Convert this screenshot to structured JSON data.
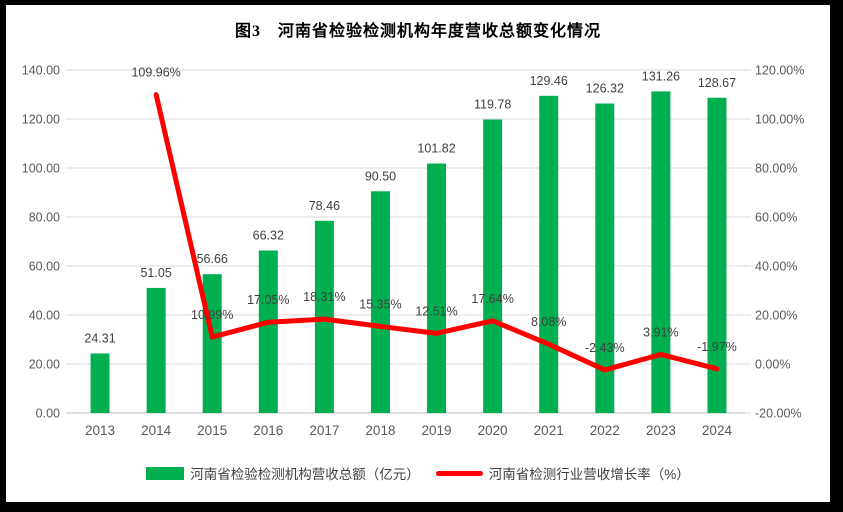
{
  "title": "图3　河南省检验检测机构年度营收总额变化情况",
  "colors": {
    "bar": "#00B050",
    "line": "#FF0000",
    "gridline": "#D9D9D9",
    "axis_line": "#BFBFBF",
    "axis_text": "#595959",
    "data_label": "#404040",
    "title_text": "#000000",
    "background": "#FFFFFF",
    "frame": "#000000"
  },
  "chart_data": {
    "type": "bar+line combo",
    "title": "图3　河南省检验检测机构年度营收总额变化情况",
    "categories": [
      "2013",
      "2014",
      "2015",
      "2016",
      "2017",
      "2018",
      "2019",
      "2020",
      "2021",
      "2022",
      "2023",
      "2024"
    ],
    "series": [
      {
        "name": "河南省检验检测机构营收总额（亿元）",
        "type": "bar",
        "axis": "left",
        "color": "#00B050",
        "values": [
          24.31,
          51.05,
          56.66,
          66.32,
          78.46,
          90.5,
          101.82,
          119.78,
          129.46,
          126.32,
          131.26,
          128.67
        ],
        "labels": [
          "24.31",
          "51.05",
          "56.66",
          "66.32",
          "78.46",
          "90.50",
          "101.82",
          "119.78",
          "129.46",
          "126.32",
          "131.26",
          "128.67"
        ]
      },
      {
        "name": "河南省检测行业营收增长率（%）",
        "type": "line",
        "axis": "right",
        "color": "#FF0000",
        "values": [
          null,
          109.96,
          10.99,
          17.05,
          18.31,
          15.35,
          12.51,
          17.64,
          8.08,
          -2.43,
          3.91,
          -1.97
        ],
        "labels": [
          null,
          "109.96%",
          "10.99%",
          "17.05%",
          "18.31%",
          "15.35%",
          "12.51%",
          "17.64%",
          "8.08%",
          "-2.43%",
          "3.91%",
          "-1.97%"
        ]
      }
    ],
    "left_axis": {
      "min": 0,
      "max": 140,
      "step": 20,
      "tick_labels": [
        "0.00",
        "20.00",
        "40.00",
        "60.00",
        "80.00",
        "100.00",
        "120.00",
        "140.00"
      ]
    },
    "right_axis": {
      "min": -20,
      "max": 120,
      "step": 20,
      "tick_labels": [
        "-20.00%",
        "0.00%",
        "20.00%",
        "40.00%",
        "60.00%",
        "80.00%",
        "100.00%",
        "120.00%"
      ]
    },
    "grid": "horizontal",
    "legend_position": "bottom"
  }
}
